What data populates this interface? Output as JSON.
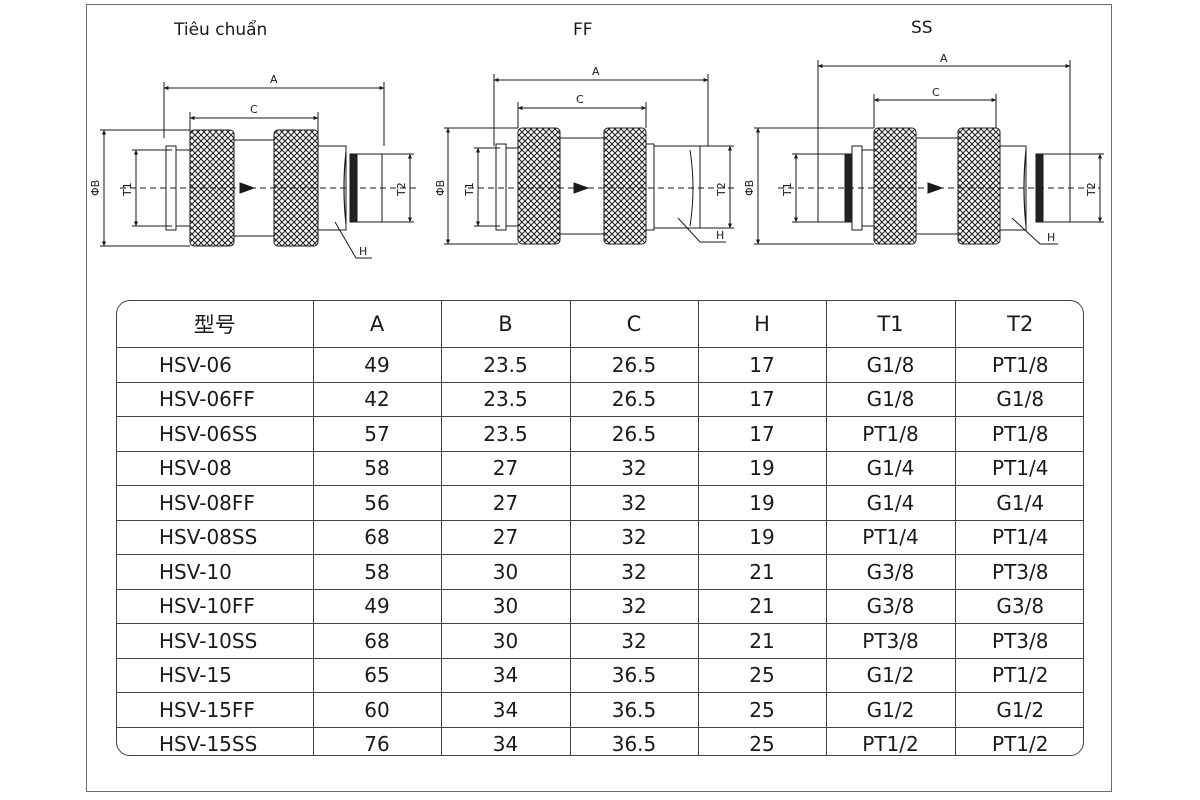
{
  "variants": [
    {
      "title": "Tiêu chuẩn"
    },
    {
      "title": "FF"
    },
    {
      "title": "SS"
    }
  ],
  "dimension_labels": {
    "A": "A",
    "C": "C",
    "B": "ΦB",
    "T1": "T1",
    "T2": "T2",
    "H": "H"
  },
  "table": {
    "headers": [
      "型号",
      "A",
      "B",
      "C",
      "H",
      "T1",
      "T2"
    ],
    "rows": [
      [
        "HSV-06",
        "49",
        "23.5",
        "26.5",
        "17",
        "G1/8",
        "PT1/8"
      ],
      [
        "HSV-06FF",
        "42",
        "23.5",
        "26.5",
        "17",
        "G1/8",
        "G1/8"
      ],
      [
        "HSV-06SS",
        "57",
        "23.5",
        "26.5",
        "17",
        "PT1/8",
        "PT1/8"
      ],
      [
        "HSV-08",
        "58",
        "27",
        "32",
        "19",
        "G1/4",
        "PT1/4"
      ],
      [
        "HSV-08FF",
        "56",
        "27",
        "32",
        "19",
        "G1/4",
        "G1/4"
      ],
      [
        "HSV-08SS",
        "68",
        "27",
        "32",
        "19",
        "PT1/4",
        "PT1/4"
      ],
      [
        "HSV-10",
        "58",
        "30",
        "32",
        "21",
        "G3/8",
        "PT3/8"
      ],
      [
        "HSV-10FF",
        "49",
        "30",
        "32",
        "21",
        "G3/8",
        "G3/8"
      ],
      [
        "HSV-10SS",
        "68",
        "30",
        "32",
        "21",
        "PT3/8",
        "PT3/8"
      ],
      [
        "HSV-15",
        "65",
        "34",
        "36.5",
        "25",
        "G1/2",
        "PT1/2"
      ],
      [
        "HSV-15FF",
        "60",
        "34",
        "36.5",
        "25",
        "G1/2",
        "G1/2"
      ],
      [
        "HSV-15SS",
        "76",
        "34",
        "36.5",
        "25",
        "PT1/2",
        "PT1/2"
      ]
    ]
  },
  "colors": {
    "line": "#1a1a1a",
    "knurl": "#2a2a2a",
    "frame": "#6a6a6a"
  }
}
